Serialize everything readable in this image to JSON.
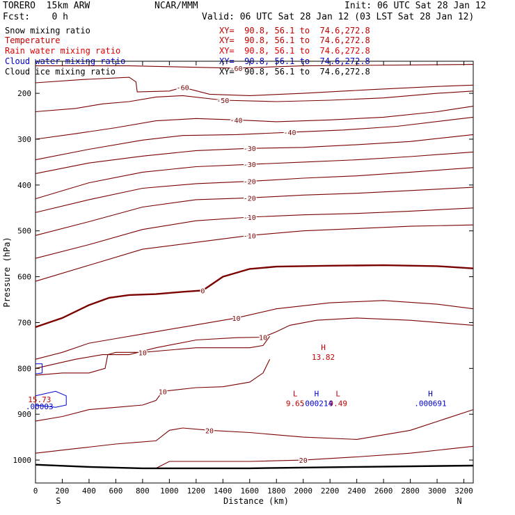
{
  "header": {
    "model": "TORERO  15km ARW",
    "org": "NCAR/MMM",
    "init": "Init: 06 UTC Sat 28 Jan 12",
    "fcst": "Fcst:    0 h",
    "valid": "Valid: 06 UTC Sat 28 Jan 12 (03 LST Sat 28 Jan 12)"
  },
  "legend": [
    {
      "name": "Snow mixing ratio",
      "xy": "XY=  90.8, 56.1 to  74.6,272.8",
      "color": "#000000"
    },
    {
      "name": "Temperature",
      "xy": "XY=  90.8, 56.1 to  74.6,272.8",
      "color": "#c00000"
    },
    {
      "name": "Rain water mixing ratio",
      "xy": "XY=  90.8, 56.1 to  74.6,272.8",
      "color": "#e00000"
    },
    {
      "name": "Cloud water mixing ratio",
      "xy": "XY=  90.8, 56.1 to  74.6,272.8",
      "color": "#0000cc"
    },
    {
      "name": "Cloud ice mixing ratio",
      "xy": "XY=  90.8, 56.1 to  74.6,272.8",
      "color": "#000000"
    }
  ],
  "chart_data": {
    "type": "line",
    "title": "",
    "xlabel": "Distance (km)",
    "ylabel": "Pressure (hPa)",
    "xlim": [
      0,
      3270
    ],
    "ylim": [
      1050,
      130
    ],
    "x_ticks": [
      0,
      200,
      400,
      600,
      800,
      1000,
      1200,
      1400,
      1600,
      1800,
      2000,
      2200,
      2400,
      2600,
      2800,
      3000,
      3200
    ],
    "y_ticks": [
      200,
      300,
      400,
      500,
      600,
      700,
      800,
      900,
      1000
    ],
    "x_end_labels": {
      "left": "S",
      "right": "N"
    },
    "grid": false,
    "temperature_contours": [
      {
        "level": -60,
        "points": [
          [
            0,
            177
          ],
          [
            350,
            170
          ],
          [
            700,
            165
          ],
          [
            750,
            175
          ],
          [
            760,
            197
          ],
          [
            1000,
            195
          ],
          [
            1100,
            187
          ],
          [
            1300,
            202
          ],
          [
            1600,
            205
          ],
          [
            2000,
            200
          ],
          [
            2500,
            192
          ],
          [
            3000,
            185
          ],
          [
            3270,
            182
          ]
        ]
      },
      {
        "level": -60,
        "points": [
          [
            0,
            140
          ],
          [
            700,
            140
          ],
          [
            1500,
            145
          ],
          [
            2000,
            140
          ],
          [
            3270,
            137
          ]
        ]
      },
      {
        "level": -50,
        "points": [
          [
            0,
            240
          ],
          [
            300,
            233
          ],
          [
            500,
            223
          ],
          [
            700,
            218
          ],
          [
            900,
            208
          ],
          [
            1100,
            205
          ],
          [
            1400,
            215
          ],
          [
            1800,
            218
          ],
          [
            2200,
            215
          ],
          [
            2600,
            210
          ],
          [
            3000,
            200
          ],
          [
            3270,
            195
          ]
        ]
      },
      {
        "level": -40,
        "points": [
          [
            0,
            300
          ],
          [
            300,
            288
          ],
          [
            600,
            275
          ],
          [
            900,
            260
          ],
          [
            1200,
            255
          ],
          [
            1500,
            258
          ],
          [
            1800,
            262
          ],
          [
            2200,
            258
          ],
          [
            2600,
            252
          ],
          [
            3000,
            240
          ],
          [
            3270,
            228
          ]
        ]
      },
      {
        "level": -40,
        "points": [
          [
            0,
            345
          ],
          [
            400,
            322
          ],
          [
            800,
            302
          ],
          [
            1100,
            292
          ],
          [
            1500,
            290
          ],
          [
            1900,
            285
          ],
          [
            2300,
            280
          ],
          [
            2700,
            272
          ],
          [
            3100,
            258
          ],
          [
            3270,
            252
          ]
        ]
      },
      {
        "level": -30,
        "points": [
          [
            0,
            375
          ],
          [
            400,
            352
          ],
          [
            800,
            337
          ],
          [
            1200,
            325
          ],
          [
            1600,
            320
          ],
          [
            2000,
            318
          ],
          [
            2400,
            312
          ],
          [
            2800,
            305
          ],
          [
            3270,
            290
          ]
        ]
      },
      {
        "level": -30,
        "points": [
          [
            0,
            430
          ],
          [
            400,
            395
          ],
          [
            800,
            372
          ],
          [
            1200,
            360
          ],
          [
            1600,
            355
          ],
          [
            2000,
            350
          ],
          [
            2400,
            345
          ],
          [
            2800,
            338
          ],
          [
            3270,
            328
          ]
        ]
      },
      {
        "level": -20,
        "points": [
          [
            0,
            460
          ],
          [
            400,
            432
          ],
          [
            800,
            407
          ],
          [
            1200,
            397
          ],
          [
            1600,
            392
          ],
          [
            2000,
            385
          ],
          [
            2400,
            380
          ],
          [
            2800,
            372
          ],
          [
            3270,
            362
          ]
        ]
      },
      {
        "level": -20,
        "points": [
          [
            0,
            510
          ],
          [
            400,
            480
          ],
          [
            800,
            448
          ],
          [
            1200,
            432
          ],
          [
            1600,
            428
          ],
          [
            2000,
            422
          ],
          [
            2400,
            418
          ],
          [
            2800,
            412
          ],
          [
            3270,
            405
          ]
        ]
      },
      {
        "level": -10,
        "points": [
          [
            0,
            560
          ],
          [
            400,
            530
          ],
          [
            800,
            497
          ],
          [
            1200,
            478
          ],
          [
            1600,
            470
          ],
          [
            2000,
            465
          ],
          [
            2400,
            462
          ],
          [
            2800,
            457
          ],
          [
            3270,
            450
          ]
        ]
      },
      {
        "level": -10,
        "points": [
          [
            0,
            610
          ],
          [
            400,
            575
          ],
          [
            800,
            540
          ],
          [
            1200,
            525
          ],
          [
            1600,
            510
          ],
          [
            2000,
            500
          ],
          [
            2400,
            495
          ],
          [
            2800,
            490
          ],
          [
            3270,
            487
          ]
        ]
      },
      {
        "level": 0,
        "points": [
          [
            0,
            710
          ],
          [
            200,
            690
          ],
          [
            400,
            662
          ],
          [
            550,
            646
          ],
          [
            700,
            640
          ],
          [
            900,
            638
          ],
          [
            1100,
            633
          ],
          [
            1250,
            630
          ],
          [
            1400,
            600
          ],
          [
            1600,
            583
          ],
          [
            1800,
            578
          ],
          [
            2200,
            576
          ],
          [
            2600,
            575
          ],
          [
            3000,
            577
          ],
          [
            3270,
            582
          ]
        ]
      },
      {
        "level": 10,
        "points": [
          [
            0,
            780
          ],
          [
            200,
            765
          ],
          [
            400,
            745
          ],
          [
            600,
            735
          ],
          [
            800,
            725
          ],
          [
            1200,
            705
          ],
          [
            1500,
            690
          ],
          [
            1800,
            670
          ],
          [
            2200,
            657
          ],
          [
            2600,
            652
          ],
          [
            3000,
            660
          ],
          [
            3270,
            670
          ]
        ]
      },
      {
        "level": 10,
        "points": [
          [
            0,
            800
          ],
          [
            300,
            780
          ],
          [
            500,
            770
          ],
          [
            700,
            770
          ],
          [
            900,
            755
          ],
          [
            1200,
            738
          ],
          [
            1500,
            733
          ],
          [
            1700,
            732
          ],
          [
            1800,
            720
          ],
          [
            1900,
            706
          ],
          [
            2100,
            695
          ],
          [
            2400,
            690
          ],
          [
            2800,
            695
          ],
          [
            3100,
            702
          ],
          [
            3270,
            706
          ]
        ]
      },
      {
        "level": 10,
        "points": [
          [
            0,
            815
          ],
          [
            200,
            810
          ],
          [
            400,
            810
          ],
          [
            520,
            800
          ],
          [
            540,
            770
          ],
          [
            600,
            765
          ],
          [
            800,
            765
          ],
          [
            1000,
            760
          ],
          [
            1200,
            755
          ],
          [
            1400,
            755
          ],
          [
            1600,
            755
          ],
          [
            1700,
            750
          ],
          [
            1750,
            730
          ]
        ]
      },
      {
        "level": 10,
        "points": [
          [
            0,
            915
          ],
          [
            200,
            905
          ],
          [
            400,
            890
          ],
          [
            600,
            885
          ],
          [
            800,
            880
          ],
          [
            900,
            870
          ],
          [
            950,
            850
          ],
          [
            1200,
            842
          ],
          [
            1400,
            840
          ],
          [
            1600,
            830
          ],
          [
            1700,
            810
          ],
          [
            1750,
            780
          ]
        ]
      },
      {
        "level": 20,
        "points": [
          [
            0,
            985
          ],
          [
            300,
            975
          ],
          [
            600,
            965
          ],
          [
            900,
            958
          ],
          [
            1000,
            935
          ],
          [
            1100,
            930
          ],
          [
            1300,
            935
          ],
          [
            1600,
            940
          ],
          [
            2000,
            950
          ],
          [
            2400,
            955
          ],
          [
            2800,
            935
          ],
          [
            3270,
            890
          ]
        ]
      },
      {
        "level": 20,
        "points": [
          [
            900,
            1018
          ],
          [
            1000,
            1003
          ],
          [
            1300,
            1003
          ],
          [
            1600,
            1003
          ],
          [
            2000,
            1000
          ],
          [
            2400,
            993
          ],
          [
            2800,
            985
          ],
          [
            3270,
            970
          ]
        ]
      }
    ],
    "surface": [
      [
        0,
        1010
      ],
      [
        400,
        1015
      ],
      [
        800,
        1018
      ],
      [
        1600,
        1018
      ],
      [
        2400,
        1015
      ],
      [
        3270,
        1012
      ]
    ],
    "cloud_water_contours": [
      {
        "points": [
          [
            0,
            860
          ],
          [
            150,
            850
          ],
          [
            230,
            860
          ],
          [
            230,
            880
          ],
          [
            150,
            885
          ],
          [
            0,
            880
          ]
        ]
      },
      {
        "points": [
          [
            0,
            790
          ],
          [
            50,
            790
          ],
          [
            50,
            810
          ],
          [
            0,
            812
          ]
        ]
      }
    ],
    "extrema": [
      {
        "mark": "H",
        "value": "13.82",
        "x": 2150,
        "y": 772,
        "color": "#c00000"
      },
      {
        "mark": "L",
        "value": "9.65",
        "x": 1940,
        "y": 873,
        "color": "#c00000"
      },
      {
        "mark": "L",
        "value": "9.49",
        "x": 2260,
        "y": 873,
        "color": "#c00000"
      },
      {
        "mark": "H",
        "value": ".000214",
        "x": 2100,
        "y": 873,
        "color": "#0000cc"
      },
      {
        "mark": "H",
        "value": ".000691",
        "x": 2950,
        "y": 873,
        "color": "#0000cc"
      },
      {
        "mark": "",
        "value": "15.73",
        "x": 30,
        "y": 865,
        "color": "#c00000"
      },
      {
        "mark": "",
        "value": ".00003",
        "x": 30,
        "y": 880,
        "color": "#0000cc"
      }
    ]
  }
}
